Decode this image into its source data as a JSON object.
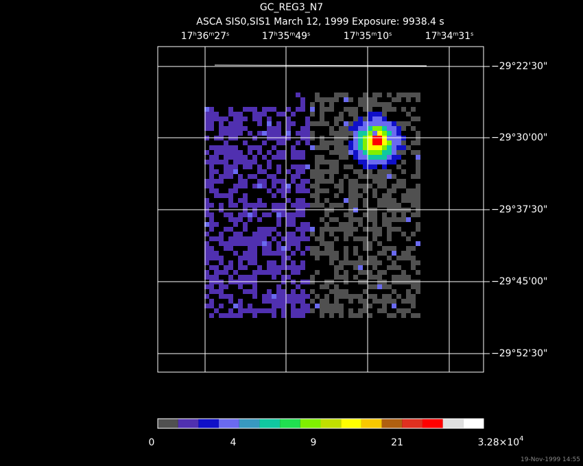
{
  "header": {
    "title": "GC_REG3_N7",
    "subtitle": "ASCA SIS0,SIS1 March 12, 1999 Exposure: 9938.4 s"
  },
  "ra_labels": [
    [
      "17",
      "h",
      "36",
      "m",
      "27",
      "s"
    ],
    [
      "17",
      "h",
      "35",
      "m",
      "49",
      "s"
    ],
    [
      "17",
      "h",
      "35",
      "m",
      "10",
      "s"
    ],
    [
      "17",
      "h",
      "34",
      "m",
      "31",
      "s"
    ]
  ],
  "dec_labels": [
    "−29°22'30\"",
    "−29°30'00\"",
    "−29°37'30\"",
    "−29°45'00\"",
    "−29°52'30\""
  ],
  "colorbar": {
    "colors": [
      "#505050",
      "#5030b0",
      "#1010c8",
      "#6a6af0",
      "#3898c0",
      "#10c8a0",
      "#20e050",
      "#80f000",
      "#c0e000",
      "#ffff00",
      "#f8c800",
      "#b06010",
      "#e03020",
      "#ff0000",
      "#e0e0e0",
      "#ffffff"
    ],
    "labels": [
      [
        "0"
      ],
      [
        "4"
      ],
      [
        "9"
      ],
      [
        "21"
      ],
      [
        "3.28×10",
        "4"
      ]
    ]
  },
  "footer": {
    "timestamp": "19-Nov-1999 14:55"
  }
}
